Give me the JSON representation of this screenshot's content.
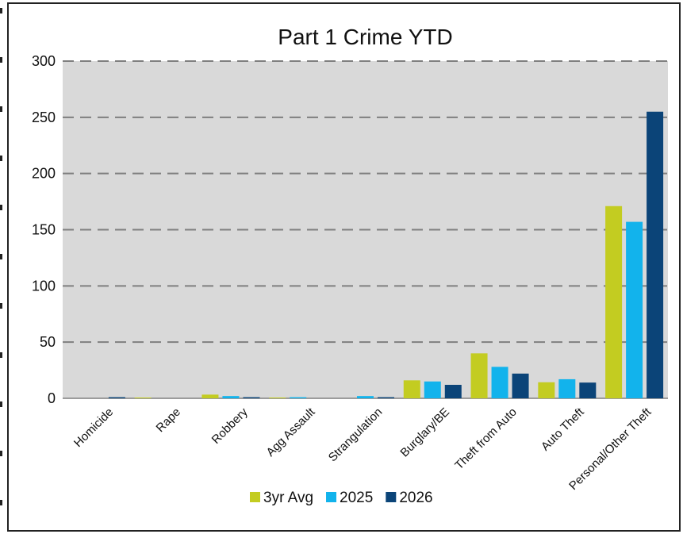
{
  "chart_data": {
    "type": "bar",
    "title": "Part 1 Crime YTD",
    "categories": [
      "Homicide",
      "Rape",
      "Robbery",
      "Agg Assault",
      "Strangulation",
      "Burglary/BE",
      "Theft from Auto",
      "Auto Theft",
      "Personal/Other Theft"
    ],
    "series": [
      {
        "name": "3yr Avg",
        "color": "#c3cc21",
        "values": [
          0,
          0.7,
          3.3,
          0.7,
          0,
          16,
          40,
          14.3,
          171
        ]
      },
      {
        "name": "2025",
        "color": "#12b3ec",
        "values": [
          0,
          0,
          2,
          1,
          2,
          15,
          28,
          17,
          157
        ]
      },
      {
        "name": "2026",
        "color": "#0b4478",
        "values": [
          1,
          0,
          1,
          0,
          1,
          12,
          22,
          14,
          255
        ]
      }
    ],
    "yticks": [
      0,
      50,
      100,
      150,
      200,
      250,
      300
    ],
    "ylim": [
      0,
      300
    ],
    "grid": true,
    "legend_position": "bottom",
    "plot_background": "#d9d9d9"
  }
}
